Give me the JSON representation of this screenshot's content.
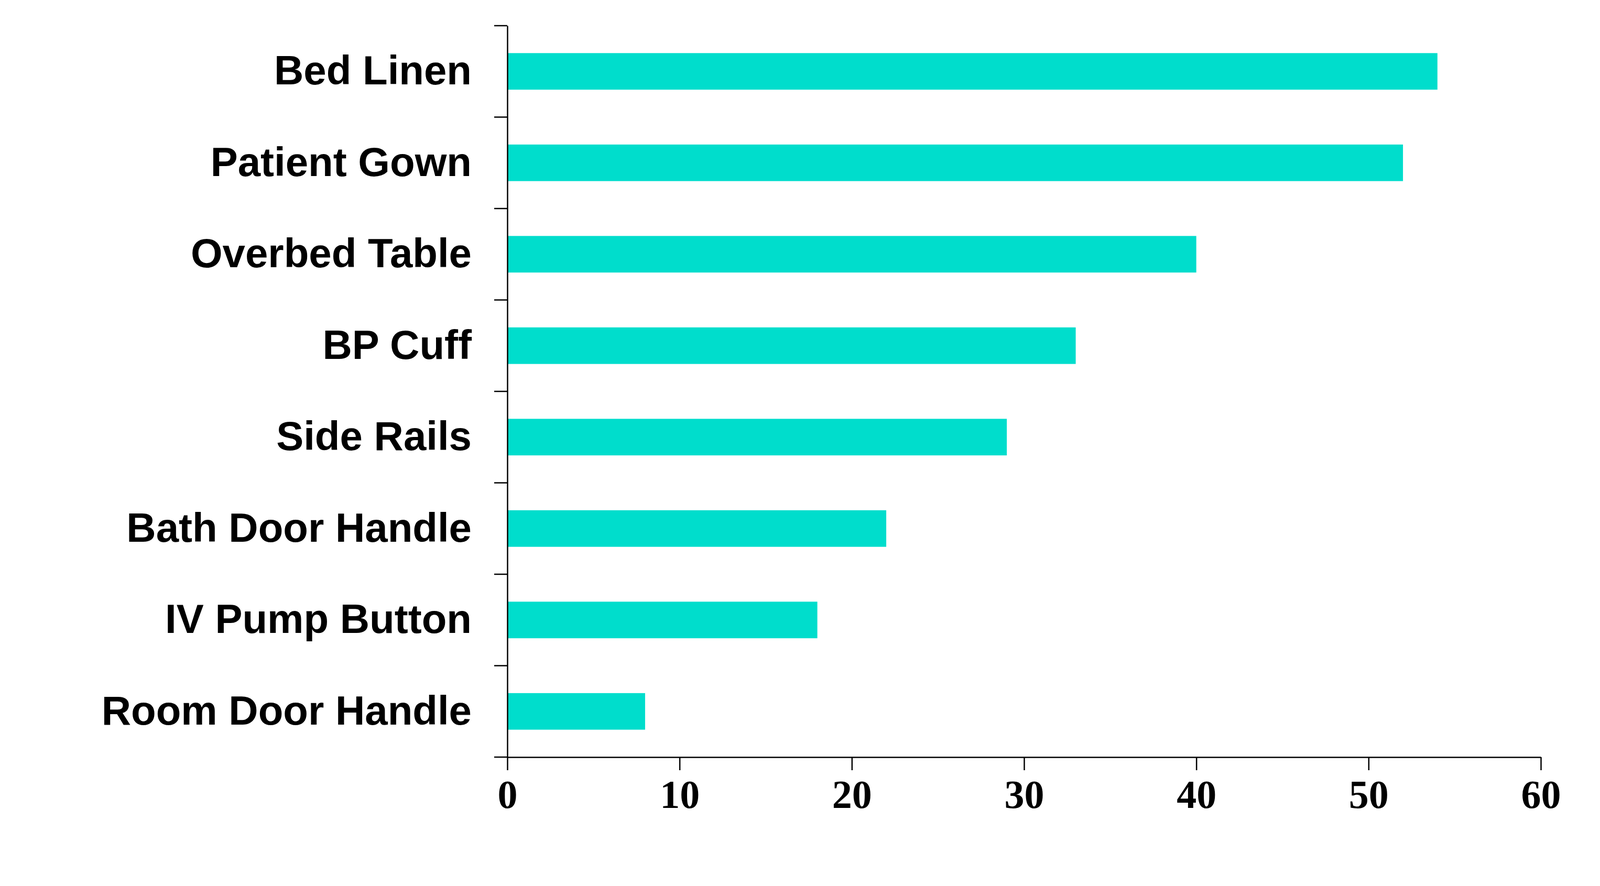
{
  "chart_data": {
    "type": "bar",
    "orientation": "horizontal",
    "categories": [
      "Bed Linen",
      "Patient Gown",
      "Overbed Table",
      "BP Cuff",
      "Side Rails",
      "Bath Door Handle",
      "IV Pump Button",
      "Room Door Handle"
    ],
    "values": [
      54,
      52,
      40,
      33,
      29,
      22,
      18,
      8
    ],
    "color": "#00ddcc",
    "xlim": [
      0,
      60
    ],
    "xticks": [
      0,
      10,
      20,
      30,
      40,
      50,
      60
    ],
    "grid": false
  }
}
